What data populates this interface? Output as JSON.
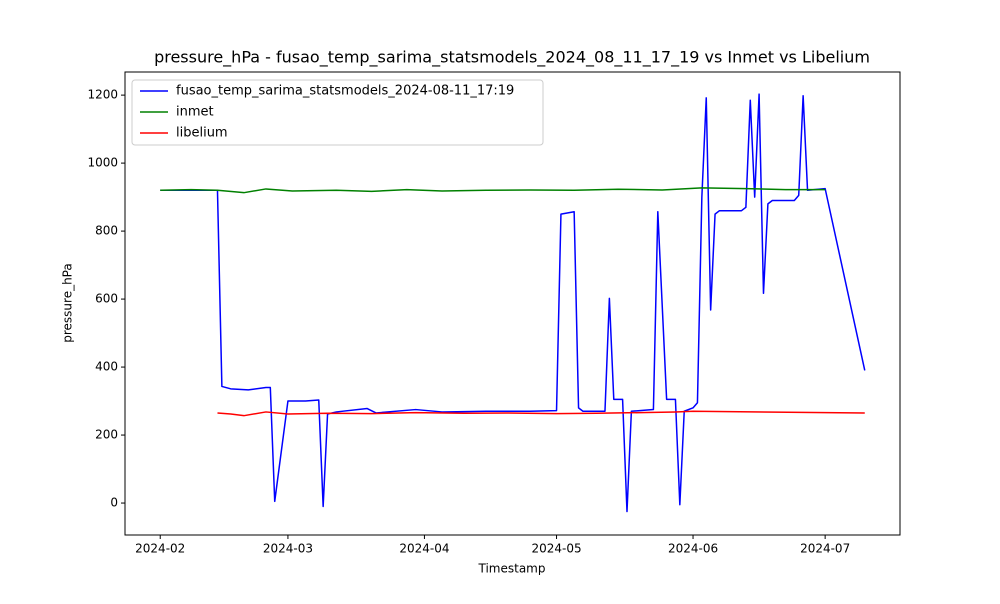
{
  "chart_data": {
    "type": "line",
    "title": "pressure_hPa - fusao_temp_sarima_statsmodels_2024_08_11_17_19 vs Inmet vs Libelium",
    "x_label": "Timestamp",
    "y_label": "pressure_hPa",
    "xlim": [
      "2024-01-24",
      "2024-07-18"
    ],
    "xticks": [
      {
        "value": "2024-02-01",
        "label": "2024-02"
      },
      {
        "value": "2024-03-01",
        "label": "2024-03"
      },
      {
        "value": "2024-04-01",
        "label": "2024-04"
      },
      {
        "value": "2024-05-01",
        "label": "2024-05"
      },
      {
        "value": "2024-06-01",
        "label": "2024-06"
      },
      {
        "value": "2024-07-01",
        "label": "2024-07"
      }
    ],
    "ylim": [
      -94,
      1268
    ],
    "yticks": [
      0,
      200,
      400,
      600,
      800,
      1000,
      1200
    ],
    "grid": false,
    "legend": "upper left",
    "series": [
      {
        "name": "fusao_temp_sarima_statsmodels_2024-08-11_17:19",
        "color": "#0000ff",
        "x": [
          "2024-02-01",
          "2024-02-14",
          "2024-02-15",
          "2024-02-17",
          "2024-02-21",
          "2024-02-25",
          "2024-02-26",
          "2024-02-27",
          "2024-03-01",
          "2024-03-05",
          "2024-03-08",
          "2024-03-09",
          "2024-03-10",
          "2024-03-12",
          "2024-03-19",
          "2024-03-21",
          "2024-03-30",
          "2024-04-05",
          "2024-04-15",
          "2024-04-25",
          "2024-05-01",
          "2024-05-02",
          "2024-05-05",
          "2024-05-06",
          "2024-05-07",
          "2024-05-12",
          "2024-05-13",
          "2024-05-14",
          "2024-05-16",
          "2024-05-17",
          "2024-05-18",
          "2024-05-23",
          "2024-05-24",
          "2024-05-26",
          "2024-05-28",
          "2024-05-29",
          "2024-05-30",
          "2024-06-01",
          "2024-06-02",
          "2024-06-03",
          "2024-06-04",
          "2024-06-05",
          "2024-06-06",
          "2024-06-07",
          "2024-06-12",
          "2024-06-13",
          "2024-06-14",
          "2024-06-15",
          "2024-06-16",
          "2024-06-17",
          "2024-06-18",
          "2024-06-19",
          "2024-06-24",
          "2024-06-25",
          "2024-06-26",
          "2024-06-27",
          "2024-07-01",
          "2024-07-10"
        ],
        "values": [
          920,
          920,
          343,
          336,
          333,
          340,
          340,
          5,
          300,
          300,
          303,
          -10,
          262,
          268,
          278,
          265,
          275,
          268,
          270,
          270,
          272,
          850,
          857,
          280,
          270,
          270,
          602,
          305,
          305,
          -25,
          270,
          275,
          857,
          305,
          305,
          -5,
          270,
          280,
          295,
          900,
          1192,
          568,
          850,
          860,
          860,
          870,
          1185,
          900,
          1203,
          617,
          880,
          890,
          890,
          905,
          1198,
          920,
          925,
          390
        ]
      },
      {
        "name": "inmet",
        "color": "#008000",
        "x": [
          "2024-02-01",
          "2024-02-08",
          "2024-02-14",
          "2024-02-20",
          "2024-02-25",
          "2024-03-02",
          "2024-03-12",
          "2024-03-20",
          "2024-03-28",
          "2024-04-05",
          "2024-04-15",
          "2024-04-25",
          "2024-05-05",
          "2024-05-15",
          "2024-05-25",
          "2024-06-03",
          "2024-06-13",
          "2024-06-22",
          "2024-07-01"
        ],
        "values": [
          920,
          922,
          920,
          913,
          924,
          918,
          920,
          917,
          922,
          918,
          920,
          921,
          920,
          923,
          921,
          927,
          925,
          922,
          922
        ]
      },
      {
        "name": "libelium",
        "color": "#ff0000",
        "x": [
          "2024-02-14",
          "2024-02-17",
          "2024-02-20",
          "2024-02-25",
          "2024-03-01",
          "2024-03-10",
          "2024-03-20",
          "2024-03-30",
          "2024-04-10",
          "2024-04-20",
          "2024-05-01",
          "2024-05-10",
          "2024-05-20",
          "2024-05-28",
          "2024-06-01",
          "2024-07-10"
        ],
        "values": [
          265,
          262,
          257,
          268,
          262,
          264,
          263,
          266,
          264,
          265,
          263,
          264,
          266,
          268,
          270,
          265
        ]
      }
    ]
  }
}
